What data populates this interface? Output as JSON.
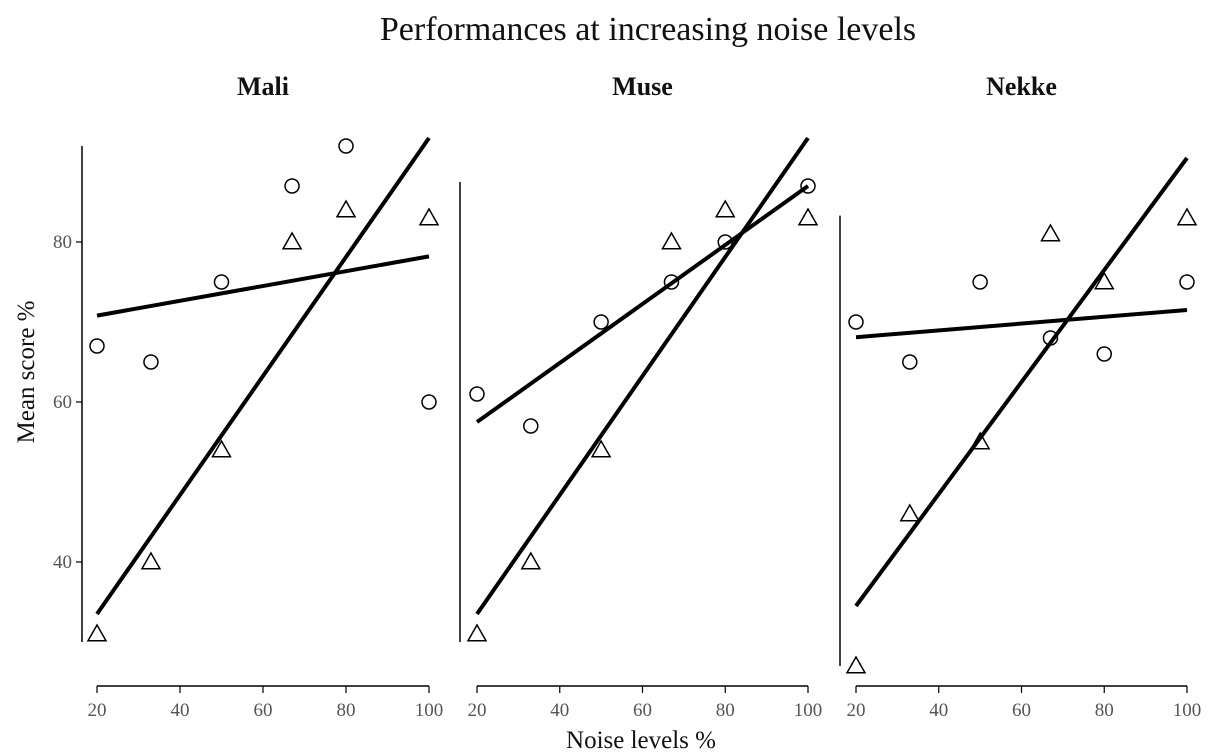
{
  "chart_data": {
    "type": "scatter",
    "title": "Performances at increasing noise levels",
    "xlabel": "Noise levels %",
    "ylabel": "Mean score %",
    "xlim": [
      20,
      100
    ],
    "xticks": [
      20,
      40,
      60,
      80,
      100
    ],
    "yticks": [
      40,
      60,
      80
    ],
    "grid": false,
    "legend": "none",
    "shared_y": true,
    "panels": [
      {
        "name": "Mali",
        "ylim": [
          30,
          92
        ],
        "series": [
          {
            "marker": "circle",
            "points": [
              [
                20,
                67
              ],
              [
                33,
                65
              ],
              [
                50,
                75
              ],
              [
                67,
                87
              ],
              [
                80,
                92
              ],
              [
                100,
                60
              ]
            ],
            "fit": {
              "x": [
                20,
                100
              ],
              "y": [
                70.8,
                78.2
              ]
            }
          },
          {
            "marker": "triangle",
            "points": [
              [
                20,
                31
              ],
              [
                33,
                40
              ],
              [
                50,
                54
              ],
              [
                67,
                80
              ],
              [
                80,
                84
              ],
              [
                100,
                83
              ]
            ],
            "fit": {
              "x": [
                20,
                100
              ],
              "y": [
                33.5,
                93
              ]
            }
          }
        ]
      },
      {
        "name": "Muse",
        "ylim": [
          30,
          87.5
        ],
        "series": [
          {
            "marker": "circle",
            "points": [
              [
                20,
                61
              ],
              [
                33,
                57
              ],
              [
                50,
                70
              ],
              [
                67,
                75
              ],
              [
                80,
                80
              ],
              [
                100,
                87
              ]
            ],
            "fit": {
              "x": [
                20,
                100
              ],
              "y": [
                57.5,
                87
              ]
            }
          },
          {
            "marker": "triangle",
            "points": [
              [
                20,
                31
              ],
              [
                33,
                40
              ],
              [
                50,
                54
              ],
              [
                67,
                80
              ],
              [
                80,
                84
              ],
              [
                100,
                83
              ]
            ],
            "fit": {
              "x": [
                20,
                100
              ],
              "y": [
                33.5,
                93
              ]
            }
          }
        ]
      },
      {
        "name": "Nekke",
        "ylim": [
          27,
          83.3
        ],
        "series": [
          {
            "marker": "circle",
            "points": [
              [
                20,
                70
              ],
              [
                33,
                65
              ],
              [
                50,
                75
              ],
              [
                67,
                68
              ],
              [
                80,
                66
              ],
              [
                100,
                75
              ]
            ],
            "fit": {
              "x": [
                20,
                100
              ],
              "y": [
                68.1,
                71.5
              ]
            }
          },
          {
            "marker": "triangle",
            "points": [
              [
                20,
                27
              ],
              [
                33,
                46
              ],
              [
                50,
                55
              ],
              [
                67,
                81
              ],
              [
                80,
                75
              ],
              [
                100,
                83
              ]
            ],
            "fit": {
              "x": [
                20,
                100
              ],
              "y": [
                34.5,
                90.5
              ]
            }
          }
        ]
      }
    ]
  }
}
